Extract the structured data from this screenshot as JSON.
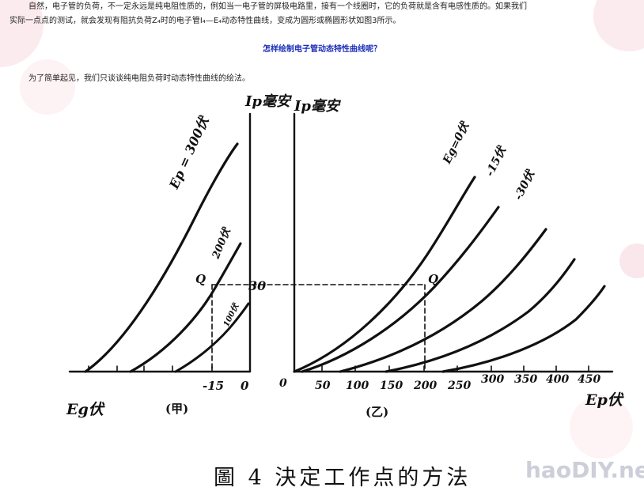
{
  "article": {
    "paragraph1_line1": "自然，电子管的负荷，不一定永远是纯电阻性质的，例如当一电子管的屏极电路里，接有一个线圈时，它的负荷就是含有电感性质的。如果我们",
    "paragraph1_line2": "实际一点点的测试，就会发现有阻抗负荷Z₄时的电子管I₄—E₄动态特性曲线，变成为圆形或椭圆形状如图3所示。",
    "heading": "怎样绘制电子管动态特性曲线呢？",
    "paragraph2": "为了简单起见，我们只谈谈纯电阻负荷时动态特性曲线的绘法。"
  },
  "figure": {
    "caption": "圖 4   決定工作点的方法",
    "watermark": "haoDIY.net",
    "left_panel": {
      "y_axis_label": "Ip毫安",
      "x_axis_label": "Eg伏",
      "panel_label": "(甲)",
      "curve_labels": [
        "Ep = 300伏",
        "200伏",
        "100伏"
      ],
      "x_ticks": [
        "-15",
        "0"
      ],
      "point_label": "Q"
    },
    "right_panel": {
      "y_axis_label": "Ip毫安",
      "x_axis_label": "Ep伏",
      "panel_label": "(乙)",
      "curve_labels": [
        "Eg=0伏",
        "-15伏",
        "-30伏"
      ],
      "x_ticks": [
        "0",
        "50",
        "100",
        "150",
        "200",
        "250",
        "300",
        "350",
        "400",
        "450"
      ],
      "y_tick": "30",
      "point_label": "Q"
    }
  }
}
